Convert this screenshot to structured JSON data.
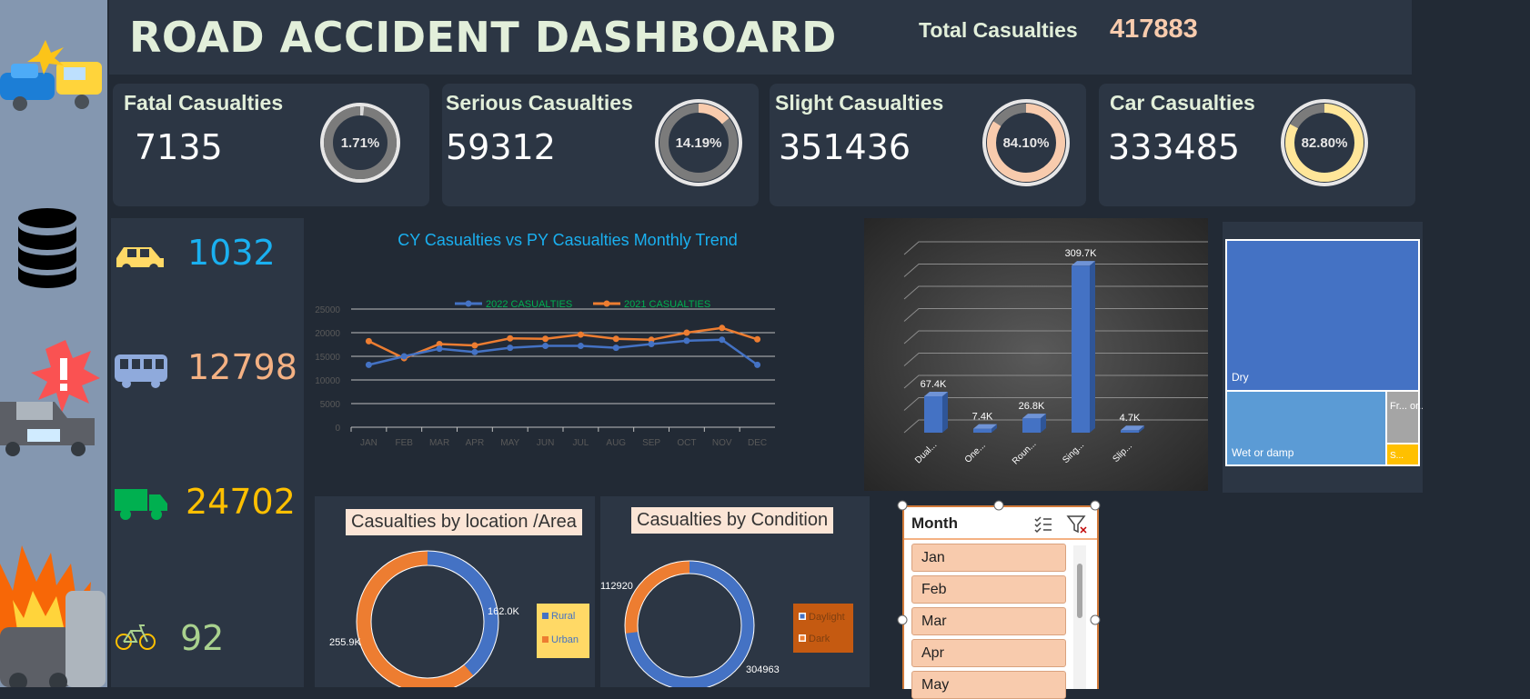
{
  "header": {
    "title": "ROAD ACCIDENT DASHBOARD",
    "total_label": "Total Casualties",
    "total_value": "417883"
  },
  "kpis": [
    {
      "label": "Fatal Casualties",
      "value": "7135",
      "pct_label": "1.71%",
      "pct": 0.0171,
      "accent": "#d9d9d9"
    },
    {
      "label": "Serious Casualties",
      "value": "59312",
      "pct_label": "14.19%",
      "pct": 0.1419,
      "accent": "#f8cbad"
    },
    {
      "label": "Slight Casualties",
      "value": "351436",
      "pct_label": "84.10%",
      "pct": 0.841,
      "accent": "#f8cbad"
    },
    {
      "label": "Car Casualties",
      "value": "333485",
      "pct_label": "82.80%",
      "pct": 0.828,
      "accent": "#ffe699"
    }
  ],
  "vehicles": [
    {
      "icon": "car-icon",
      "value": "1032",
      "color": "#1ab0f0"
    },
    {
      "icon": "bus-icon",
      "value": "12798",
      "color": "#f4b183"
    },
    {
      "icon": "truck-icon",
      "value": "24702",
      "color": "#ffc000"
    },
    {
      "icon": "bicycle-icon",
      "value": "92",
      "color": "#a9d18e"
    }
  ],
  "line_chart": {
    "title": "CY Casualties vs PY Casualties Monthly Trend",
    "legend": [
      "2022 CASUALTIES",
      "2021  CASUALTIES"
    ],
    "y_ticks": [
      "0",
      "5000",
      "10000",
      "15000",
      "20000",
      "25000"
    ],
    "months": [
      "JAN",
      "FEB",
      "MAR",
      "APR",
      "MAY",
      "JUN",
      "JUL",
      "AUG",
      "SEP",
      "OCT",
      "NOV",
      "DEC"
    ]
  },
  "bar_chart": {
    "labels": [
      "67.4K",
      "7.4K",
      "26.8K",
      "309.7K",
      "4.7K"
    ],
    "categories": [
      "Dual...",
      "One...",
      "Roun...",
      "Sing...",
      "Slip..."
    ]
  },
  "treemap": {
    "items": [
      "Dry",
      "Wet or damp",
      "Fr... or...",
      "S..."
    ]
  },
  "location_panel": {
    "title": "Casualties by location /Area",
    "rural_label": "162.0K",
    "urban_label": "255.9K",
    "legend": [
      "Rural",
      "Urban"
    ]
  },
  "condition_panel": {
    "title": "Casualties by  Condition",
    "daylight_label": "304963",
    "dark_label": "112920",
    "legend": [
      "Daylight",
      "Dark"
    ]
  },
  "slicer": {
    "title": "Month",
    "items": [
      "Jan",
      "Feb",
      "Mar",
      "Apr",
      "May"
    ]
  },
  "chart_data": [
    {
      "type": "line",
      "title": "CY Casualties vs PY Casualties Monthly Trend",
      "categories": [
        "JAN",
        "FEB",
        "MAR",
        "APR",
        "MAY",
        "JUN",
        "JUL",
        "AUG",
        "SEP",
        "OCT",
        "NOV",
        "DEC"
      ],
      "series": [
        {
          "name": "2022 CASUALTIES",
          "values": [
            13200,
            15000,
            16600,
            15900,
            16800,
            17200,
            17200,
            16800,
            17600,
            18300,
            18500,
            13200
          ],
          "color": "#4472c4"
        },
        {
          "name": "2021  CASUALTIES",
          "values": [
            18200,
            14600,
            17600,
            17300,
            18800,
            18700,
            19600,
            18700,
            18500,
            20000,
            21000,
            18600
          ],
          "color": "#ed7d31"
        }
      ],
      "ylim": [
        0,
        25000
      ],
      "grid": true,
      "legend": "top"
    },
    {
      "type": "bar",
      "categories": [
        "Dual...",
        "One...",
        "Roun...",
        "Sing...",
        "Slip..."
      ],
      "values": [
        67.4,
        7.4,
        26.8,
        309.7,
        4.7
      ],
      "unit": "K",
      "color": "#4472c4"
    },
    {
      "type": "treemap",
      "categories": [
        "Dry",
        "Wet or damp",
        "Fr... or...",
        "S..."
      ],
      "colors": [
        "#4472c4",
        "#5b9bd5",
        "#a5a5a5",
        "#ffc000"
      ]
    },
    {
      "type": "pie",
      "title": "Casualties by location /Area",
      "categories": [
        "Rural",
        "Urban"
      ],
      "values": [
        162.0,
        255.9
      ],
      "colors": [
        "#4472c4",
        "#ed7d31"
      ]
    },
    {
      "type": "pie",
      "title": "Casualties by  Condition",
      "categories": [
        "Daylight",
        "Dark"
      ],
      "values": [
        304963,
        112920
      ],
      "colors": [
        "#4472c4",
        "#ed7d31"
      ]
    }
  ]
}
